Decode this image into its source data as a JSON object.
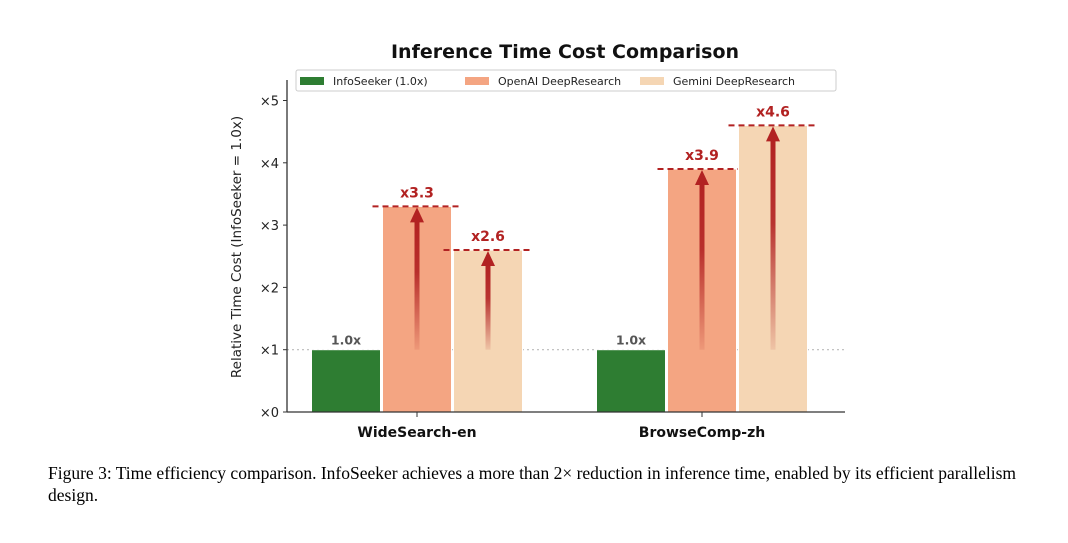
{
  "chart_data": {
    "type": "bar",
    "title": "Inference Time Cost Comparison",
    "ylabel": "Relative Time Cost (InfoSeeker = 1.0x)",
    "xlabel": "",
    "ylim": [
      0,
      5.2
    ],
    "yticks": [
      0,
      1,
      2,
      3,
      4,
      5
    ],
    "ytick_labels": [
      "×0",
      "×1",
      "×2",
      "×3",
      "×4",
      "×5"
    ],
    "categories": [
      "WideSearch-en",
      "BrowseComp-zh"
    ],
    "series": [
      {
        "name": "InfoSeeker (1.0x)",
        "color": "#2e7d32",
        "values": [
          1.0,
          1.0
        ],
        "labels": [
          "1.0x",
          "1.0x"
        ]
      },
      {
        "name": "OpenAI DeepResearch",
        "color": "#f4a582",
        "values": [
          3.3,
          3.9
        ],
        "labels": [
          "x3.3",
          "x3.9"
        ]
      },
      {
        "name": "Gemini DeepResearch",
        "color": "#f5d6b4",
        "values": [
          2.6,
          4.6
        ],
        "labels": [
          "x2.6",
          "x4.6"
        ]
      }
    ],
    "legend": "top",
    "reference_line": 1.0,
    "annotation_color": "#b22222"
  },
  "caption": "Figure 3: Time efficiency comparison. InfoSeeker achieves a more than 2× reduction in inference time, enabled by its efficient parallelism design."
}
